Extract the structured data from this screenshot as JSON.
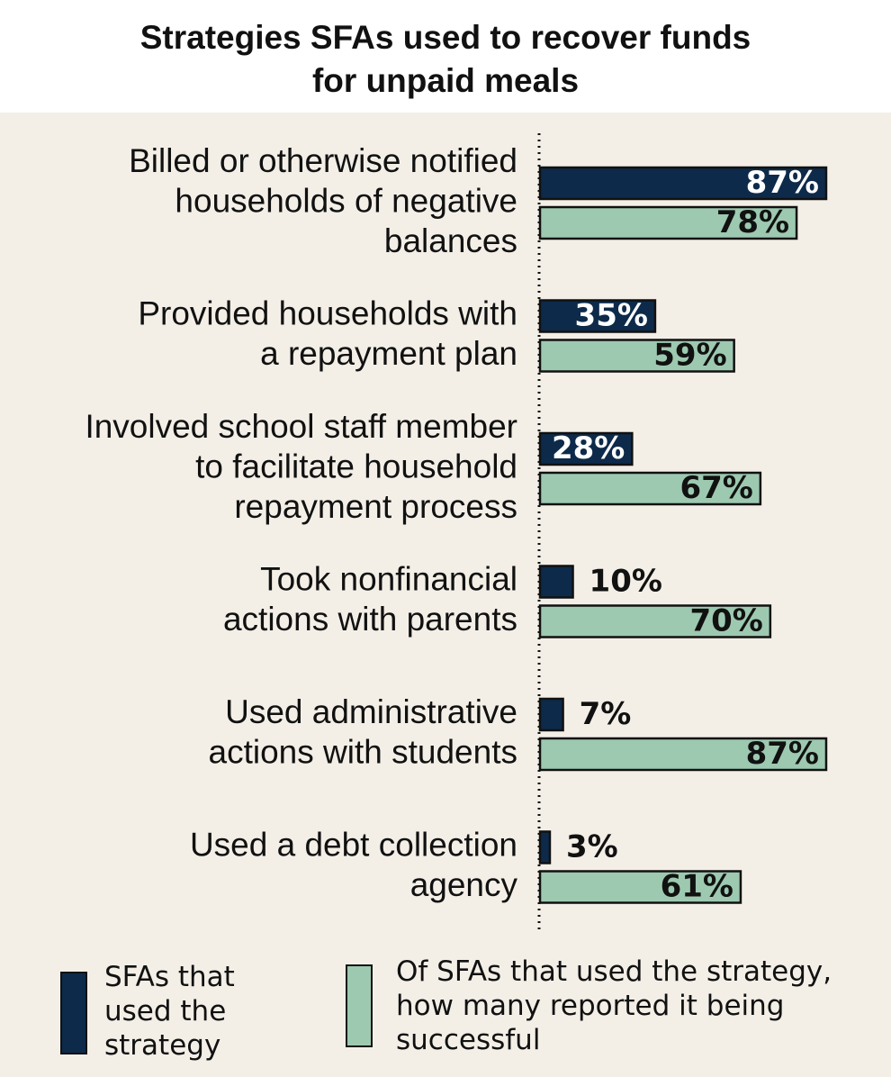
{
  "chart_data": {
    "type": "hbar_grouped",
    "title": "Strategies SFAs used to recover funds for unpaid meals",
    "categories": [
      [
        "Billed or otherwise notified",
        "households of negative",
        "balances"
      ],
      [
        "Provided households with",
        "a repayment plan"
      ],
      [
        "Involved school staff member",
        "to facilitate household",
        "repayment process"
      ],
      [
        "Took nonfinancial",
        "actions with parents"
      ],
      [
        "Used administrative",
        "actions with students"
      ],
      [
        "Used a debt collection",
        "agency"
      ]
    ],
    "series": [
      {
        "name": "SFAs that used the strategy",
        "color": "#0d2a4a",
        "values": [
          87,
          35,
          28,
          10,
          7,
          3
        ],
        "value_labels": [
          "87%",
          "35%",
          "28%",
          "10%",
          "7%",
          "3%"
        ]
      },
      {
        "name": "Of SFAs that used the strategy, how many reported it being successful",
        "color": "#9dc9b0",
        "values": [
          78,
          59,
          67,
          70,
          87,
          61
        ],
        "value_labels": [
          "78%",
          "59%",
          "67%",
          "70%",
          "87%",
          "61%"
        ]
      }
    ],
    "xlim": [
      0,
      100
    ]
  }
}
